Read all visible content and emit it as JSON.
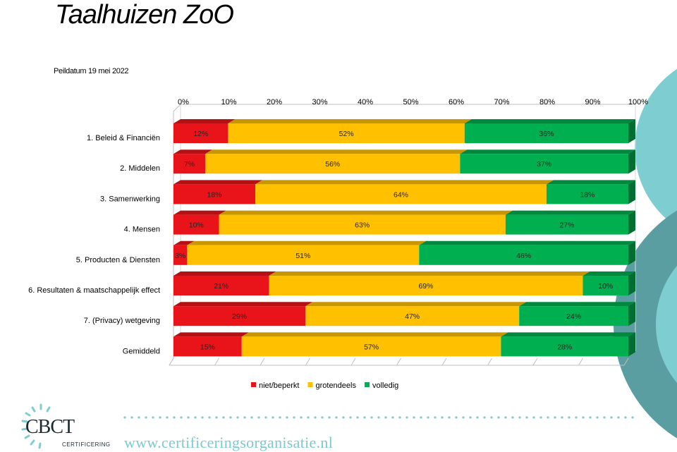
{
  "header": {
    "title": "Taalhuizen ZoO",
    "subtitle": "Peildatum 19 mei 2022"
  },
  "chart_data": {
    "type": "bar",
    "orientation": "horizontal",
    "stacked": true,
    "xlim": [
      0,
      100
    ],
    "x_ticks": [
      "0%",
      "10%",
      "20%",
      "30%",
      "40%",
      "50%",
      "60%",
      "70%",
      "80%",
      "90%",
      "100%"
    ],
    "categories": [
      "1. Beleid & Financiën",
      "2. Middelen",
      "3. Samenwerking",
      "4. Mensen",
      "5. Producten & Diensten",
      "6. Resultaten & maatschappelijk effect",
      "7. (Privacy) wetgeving",
      "Gemiddeld"
    ],
    "series": [
      {
        "name": "niet/beperkt",
        "color": "#e8141a",
        "values": [
          12,
          7,
          18,
          10,
          3,
          21,
          29,
          15
        ],
        "labels": [
          "12%",
          "7%",
          "18%",
          "10%",
          "3%",
          "21%",
          "29%",
          "15%"
        ]
      },
      {
        "name": "grotendeels",
        "color": "#ffc000",
        "values": [
          52,
          56,
          64,
          63,
          51,
          69,
          47,
          57
        ],
        "labels": [
          "52%",
          "56%",
          "64%",
          "63%",
          "51%",
          "69%",
          "47%",
          "57%"
        ]
      },
      {
        "name": "volledig",
        "color": "#00b050",
        "values": [
          36,
          37,
          18,
          27,
          46,
          10,
          24,
          28
        ],
        "labels": [
          "36%",
          "37%",
          "18%",
          "27%",
          "46%",
          "10%",
          "24%",
          "28%"
        ]
      }
    ],
    "legend_position": "bottom",
    "grid": false
  },
  "footer": {
    "website": "www.certificeringsorganisatie.nl",
    "logo_text": "CBCT",
    "logo_sub": "CERTIFICERING"
  },
  "decor": {
    "accent": "#7ecdd1",
    "accent_dark": "#5b9ea1"
  }
}
